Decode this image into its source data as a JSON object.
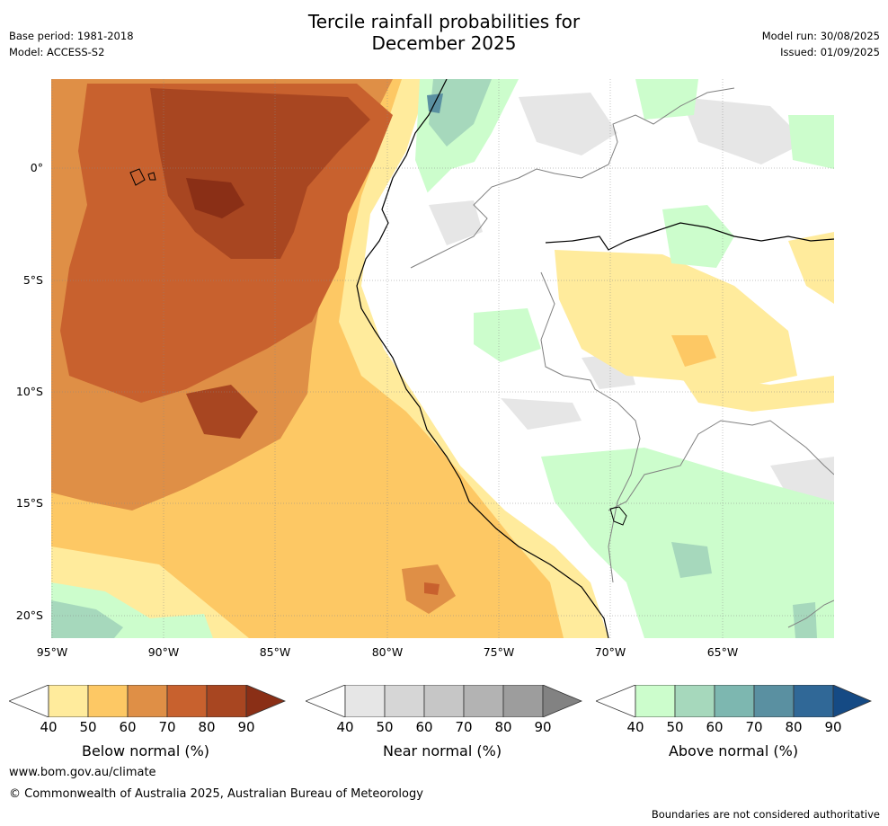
{
  "title_line1": "Tercile rainfall probabilities for",
  "title_line2": "December 2025",
  "meta_left": {
    "base_period": "Base period: 1981-2018",
    "model": "Model: ACCESS-S2"
  },
  "meta_right": {
    "model_run": "Model run: 30/08/2025",
    "issued": "Issued: 01/09/2025"
  },
  "map": {
    "lat_labels": [
      "0°",
      "5°S",
      "10°S",
      "15°S",
      "20°S"
    ],
    "lon_labels": [
      "95°W",
      "90°W",
      "85°W",
      "80°W",
      "75°W",
      "70°W",
      "65°W"
    ]
  },
  "colorbars": [
    {
      "label": "Below normal (%)",
      "ticks": [
        "40",
        "50",
        "60",
        "70",
        "80",
        "90"
      ],
      "colors": [
        "#ffeb9c",
        "#fdc864",
        "#df8f46",
        "#c8612e",
        "#a84621",
        "#8a2f16"
      ]
    },
    {
      "label": "Near normal (%)",
      "ticks": [
        "40",
        "50",
        "60",
        "70",
        "80",
        "90"
      ],
      "colors": [
        "#e6e6e6",
        "#d6d6d6",
        "#c6c6c6",
        "#b3b3b3",
        "#9d9d9d",
        "#828282"
      ]
    },
    {
      "label": "Above normal (%)",
      "ticks": [
        "40",
        "50",
        "60",
        "70",
        "80",
        "90"
      ],
      "colors": [
        "#ccfdcc",
        "#a6d8bc",
        "#7db7b0",
        "#5a90a1",
        "#306897",
        "#154a84"
      ]
    }
  ],
  "footer": {
    "website": "www.bom.gov.au/climate",
    "copyright": "© Commonwealth of Australia 2025, Australian Bureau of Meteorology",
    "disclaimer": "Boundaries are not considered authoritative"
  }
}
